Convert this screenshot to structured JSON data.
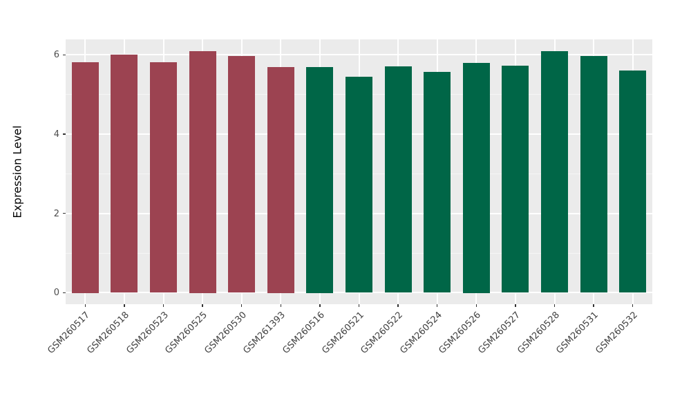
{
  "figure": {
    "background_color": "#ffffff",
    "panel_background_color": "#ebebeb",
    "gridline_color": "#ffffff",
    "tick_mark_color": "#333333",
    "axis_text_color": "#4d4d4d",
    "axis_title_color": "#000000"
  },
  "chart_data": {
    "type": "bar",
    "title": "",
    "xlabel": "",
    "ylabel": "Expression Level",
    "ylim": [
      -0.29,
      6.39
    ],
    "yticks": [
      0,
      2,
      4,
      6
    ],
    "yticks_minor": [
      1,
      3,
      5
    ],
    "grid": "on",
    "legend": "none",
    "x_label_rotation_deg": 45,
    "categories": [
      "GSM260517",
      "GSM260518",
      "GSM260523",
      "GSM260525",
      "GSM260530",
      "GSM261393",
      "GSM260516",
      "GSM260521",
      "GSM260522",
      "GSM260524",
      "GSM260526",
      "GSM260527",
      "GSM260528",
      "GSM260531",
      "GSM260532"
    ],
    "values": [
      5.82,
      6.0,
      5.81,
      6.1,
      5.97,
      5.7,
      5.7,
      5.44,
      5.71,
      5.57,
      5.8,
      5.72,
      6.09,
      5.97,
      5.6
    ],
    "groups": [
      "group1",
      "group1",
      "group1",
      "group1",
      "group1",
      "group1",
      "group2",
      "group2",
      "group2",
      "group2",
      "group2",
      "group2",
      "group2",
      "group2",
      "group2"
    ],
    "group_colors": {
      "group1": "#9c4351",
      "group2": "#006647"
    },
    "bar_colors": [
      "#9c4351",
      "#9c4351",
      "#9c4351",
      "#9c4351",
      "#9c4351",
      "#9c4351",
      "#006647",
      "#006647",
      "#006647",
      "#006647",
      "#006647",
      "#006647",
      "#006647",
      "#006647",
      "#006647"
    ]
  }
}
